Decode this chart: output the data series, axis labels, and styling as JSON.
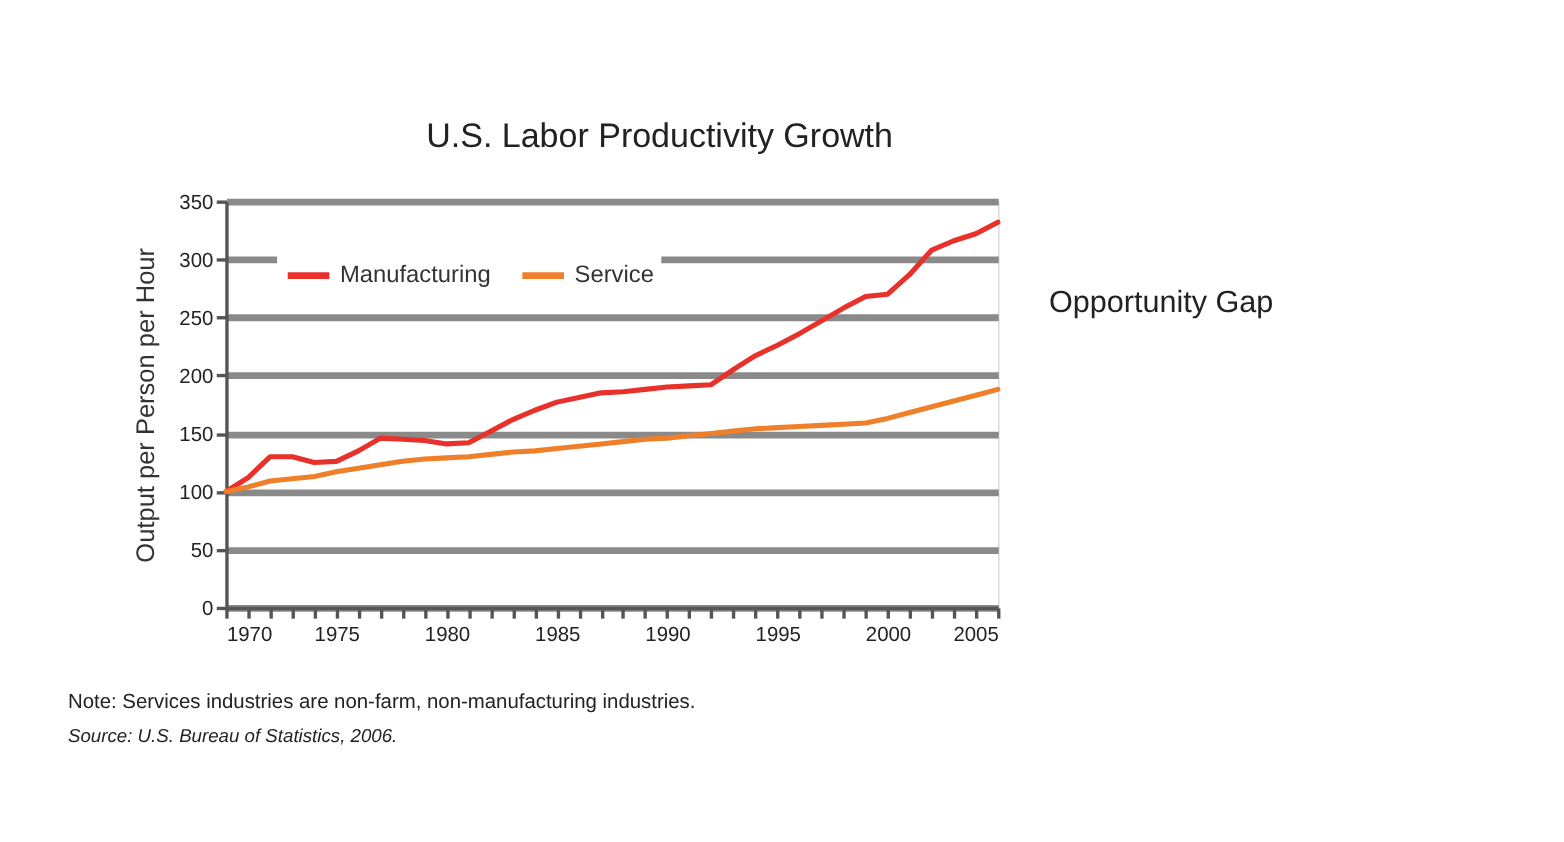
{
  "chart_data": {
    "type": "line",
    "title": "U.S. Labor Productivity Growth",
    "ylabel": "Output per Person per Hour",
    "x": [
      1970,
      1971,
      1972,
      1973,
      1974,
      1975,
      1976,
      1977,
      1978,
      1979,
      1980,
      1981,
      1982,
      1983,
      1984,
      1985,
      1986,
      1987,
      1988,
      1989,
      1990,
      1991,
      1992,
      1993,
      1994,
      1995,
      1996,
      1997,
      1998,
      1999,
      2000,
      2001,
      2002,
      2003,
      2004,
      2005
    ],
    "series": [
      {
        "name": "Manufacturing",
        "color": "#e8312a",
        "values": [
          100,
          112,
          130,
          130,
          125,
          126,
          135,
          146,
          145,
          144,
          141,
          142,
          152,
          162,
          170,
          177,
          181,
          185,
          186,
          188,
          190,
          191,
          192,
          205,
          217,
          226,
          236,
          247,
          258,
          268,
          270,
          287,
          308,
          316,
          322,
          332
        ]
      },
      {
        "name": "Service",
        "color": "#f07f2a",
        "values": [
          100,
          104,
          109,
          111,
          113,
          117,
          120,
          123,
          126,
          128,
          129,
          130,
          132,
          134,
          135,
          137,
          139,
          141,
          143,
          145,
          146,
          148,
          150,
          152,
          154,
          155,
          156,
          157,
          158,
          159,
          163,
          168,
          173,
          178,
          183,
          188
        ]
      }
    ],
    "xlim": [
      1970,
      2005
    ],
    "xticks": [
      1970,
      {
        "value": 1971,
        "label": null
      },
      {
        "value": 1972,
        "label": null
      },
      {
        "value": 1973,
        "label": null
      },
      {
        "value": 1974,
        "label": null
      },
      1975,
      {
        "value": 1976,
        "label": null
      },
      {
        "value": 1977,
        "label": null
      },
      {
        "value": 1978,
        "label": null
      },
      {
        "value": 1979,
        "label": null
      },
      1980,
      {
        "value": 1981,
        "label": null
      },
      {
        "value": 1982,
        "label": null
      },
      {
        "value": 1983,
        "label": null
      },
      {
        "value": 1984,
        "label": null
      },
      1985,
      {
        "value": 1986,
        "label": null
      },
      {
        "value": 1987,
        "label": null
      },
      {
        "value": 1988,
        "label": null
      },
      {
        "value": 1989,
        "label": null
      },
      1990,
      {
        "value": 1991,
        "label": null
      },
      {
        "value": 1992,
        "label": null
      },
      {
        "value": 1993,
        "label": null
      },
      {
        "value": 1994,
        "label": null
      },
      1995,
      {
        "value": 1996,
        "label": null
      },
      {
        "value": 1997,
        "label": null
      },
      {
        "value": 1998,
        "label": null
      },
      {
        "value": 1999,
        "label": null
      },
      2000,
      {
        "value": 2001,
        "label": null
      },
      {
        "value": 2002,
        "label": null
      },
      {
        "value": 2003,
        "label": null
      },
      {
        "value": 2004,
        "label": null
      },
      2005
    ],
    "ylim": [
      0,
      350
    ],
    "yticks": [
      0,
      50,
      100,
      150,
      200,
      250,
      300,
      350
    ],
    "grid": "y",
    "legend": "top left",
    "line_style": "solid",
    "annotations": [
      "Opportunity Gap",
      "Note: Services industries are non-farm, non-manufacturing industries.",
      "Source: U.S. Bureau of Statistics, 2006."
    ]
  }
}
